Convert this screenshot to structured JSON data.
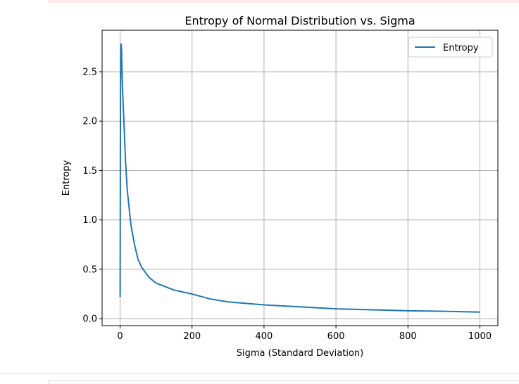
{
  "chart_data": {
    "type": "line",
    "title": "Entropy of Normal Distribution vs. Sigma",
    "xlabel": "Sigma (Standard Deviation)",
    "ylabel": "Entropy",
    "xlim": [
      -50,
      1050
    ],
    "ylim": [
      -0.07,
      2.92
    ],
    "grid": true,
    "legend_position": "top-right",
    "x_ticks": [
      0,
      200,
      400,
      600,
      800,
      1000
    ],
    "x_tick_labels": [
      "0",
      "200",
      "400",
      "600",
      "800",
      "1000"
    ],
    "y_ticks": [
      0.0,
      0.5,
      1.0,
      1.5,
      2.0,
      2.5
    ],
    "y_tick_labels": [
      "0.0",
      "0.5",
      "1.0",
      "1.5",
      "2.0",
      "2.5"
    ],
    "series": [
      {
        "name": "Entropy",
        "color": "#1f77b4",
        "x": [
          0.1,
          1,
          2,
          3,
          4,
          5,
          7,
          10,
          15,
          20,
          30,
          40,
          50,
          60,
          80,
          100,
          150,
          200,
          250,
          300,
          400,
          500,
          600,
          700,
          800,
          900,
          1000
        ],
        "y": [
          0.22,
          2.2,
          2.7,
          2.78,
          2.72,
          2.55,
          2.3,
          2.05,
          1.6,
          1.3,
          0.95,
          0.75,
          0.6,
          0.52,
          0.42,
          0.36,
          0.29,
          0.25,
          0.2,
          0.17,
          0.14,
          0.12,
          0.1,
          0.09,
          0.08,
          0.075,
          0.067
        ]
      }
    ]
  }
}
